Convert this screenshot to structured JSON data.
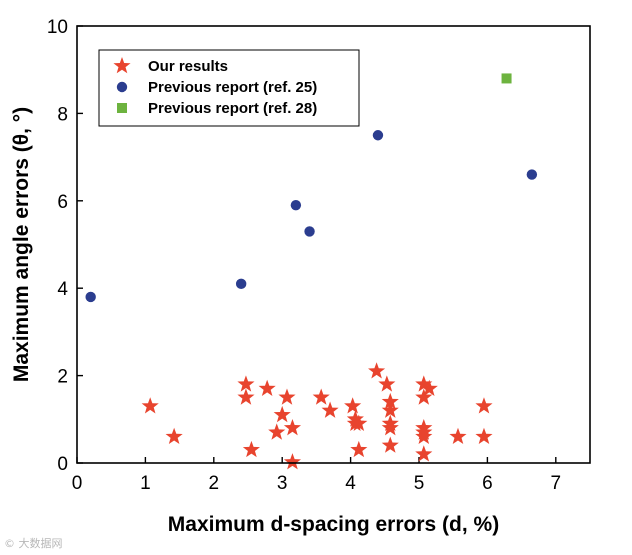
{
  "chart_data": {
    "type": "scatter",
    "xlabel": "Maximum d-spacing errors (d, %)",
    "ylabel": "Maximum angle errors (θ, °)",
    "xlim": [
      0,
      7.5
    ],
    "ylim": [
      0,
      10
    ],
    "xticks": [
      0,
      1,
      2,
      3,
      4,
      5,
      6,
      7
    ],
    "yticks": [
      0,
      2,
      4,
      6,
      8,
      10
    ],
    "grid": false,
    "legend_position": "top-left",
    "series": [
      {
        "name": "Our results",
        "marker": "star",
        "color": "#e8442e",
        "points": [
          {
            "x": 1.07,
            "y": 1.3
          },
          {
            "x": 1.42,
            "y": 0.6
          },
          {
            "x": 2.47,
            "y": 1.8
          },
          {
            "x": 2.47,
            "y": 1.5
          },
          {
            "x": 2.55,
            "y": 0.3
          },
          {
            "x": 2.78,
            "y": 1.7
          },
          {
            "x": 2.92,
            "y": 0.7
          },
          {
            "x": 3.0,
            "y": 1.1
          },
          {
            "x": 3.07,
            "y": 1.5
          },
          {
            "x": 3.15,
            "y": 0.8
          },
          {
            "x": 3.15,
            "y": 0.02
          },
          {
            "x": 3.57,
            "y": 1.5
          },
          {
            "x": 3.7,
            "y": 1.2
          },
          {
            "x": 4.03,
            "y": 1.3
          },
          {
            "x": 4.07,
            "y": 1.0
          },
          {
            "x": 4.07,
            "y": 0.9
          },
          {
            "x": 4.12,
            "y": 0.9
          },
          {
            "x": 4.12,
            "y": 0.3
          },
          {
            "x": 4.38,
            "y": 2.1
          },
          {
            "x": 4.53,
            "y": 1.8
          },
          {
            "x": 4.58,
            "y": 1.4
          },
          {
            "x": 4.58,
            "y": 1.2
          },
          {
            "x": 4.58,
            "y": 0.9
          },
          {
            "x": 4.58,
            "y": 0.8
          },
          {
            "x": 4.58,
            "y": 0.4
          },
          {
            "x": 5.07,
            "y": 1.8
          },
          {
            "x": 5.07,
            "y": 1.5
          },
          {
            "x": 5.07,
            "y": 0.8
          },
          {
            "x": 5.07,
            "y": 0.7
          },
          {
            "x": 5.07,
            "y": 0.6
          },
          {
            "x": 5.07,
            "y": 0.2
          },
          {
            "x": 5.15,
            "y": 1.7
          },
          {
            "x": 5.57,
            "y": 0.6
          },
          {
            "x": 5.95,
            "y": 1.3
          },
          {
            "x": 5.95,
            "y": 0.6
          }
        ]
      },
      {
        "name": "Previous report (ref. 25)",
        "marker": "circle",
        "color": "#2b3d8f",
        "points": [
          {
            "x": 0.2,
            "y": 3.8
          },
          {
            "x": 2.4,
            "y": 4.1
          },
          {
            "x": 3.2,
            "y": 5.9
          },
          {
            "x": 3.4,
            "y": 5.3
          },
          {
            "x": 4.4,
            "y": 7.5
          },
          {
            "x": 6.65,
            "y": 6.6
          }
        ]
      },
      {
        "name": "Previous report (ref. 28)",
        "marker": "square",
        "color": "#6db33f",
        "points": [
          {
            "x": 6.28,
            "y": 8.8
          }
        ]
      }
    ]
  },
  "watermark": "© 大数据网"
}
